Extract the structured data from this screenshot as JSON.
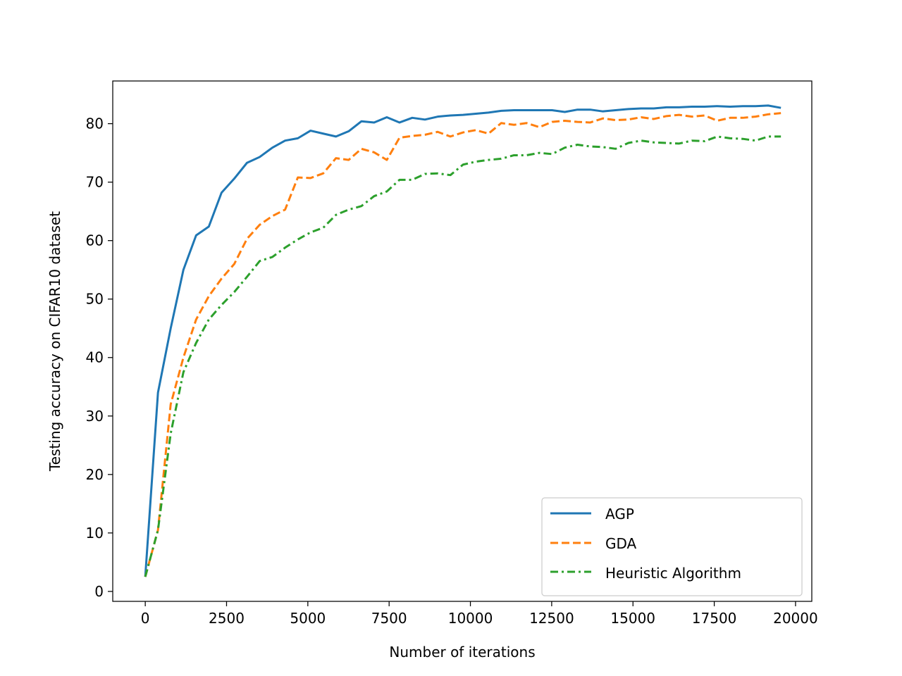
{
  "chart_data": {
    "type": "line",
    "title": "",
    "xlabel": "Number of iterations",
    "ylabel": "Testing accuracy on CIFAR10 dataset",
    "xlim": [
      -1000,
      20500
    ],
    "ylim": [
      -1.7,
      87.3
    ],
    "xticks": [
      0,
      2500,
      5000,
      7500,
      10000,
      12500,
      15000,
      17500,
      20000
    ],
    "xtick_labels": [
      "0",
      "2500",
      "5000",
      "7500",
      "10000",
      "12500",
      "15000",
      "17500",
      "20000"
    ],
    "yticks": [
      0,
      10,
      20,
      30,
      40,
      50,
      60,
      70,
      80
    ],
    "ytick_labels": [
      "0",
      "10",
      "20",
      "30",
      "40",
      "50",
      "60",
      "70",
      "80"
    ],
    "grid": false,
    "legend_position": "lower-right",
    "x": [
      0,
      391,
      782,
      1173,
      1564,
      1955,
      2346,
      2737,
      3128,
      3519,
      3910,
      4301,
      4692,
      5083,
      5474,
      5865,
      6256,
      6647,
      7038,
      7429,
      7820,
      8211,
      8602,
      8993,
      9384,
      9775,
      10166,
      10557,
      10948,
      11339,
      11730,
      12121,
      12512,
      12903,
      13294,
      13685,
      14076,
      14467,
      14858,
      15249,
      15640,
      16031,
      16422,
      16813,
      17204,
      17595,
      17986,
      18377,
      18768,
      19159,
      19550
    ],
    "series": [
      {
        "name": "AGP",
        "color": "#1f77b4",
        "style": "solid",
        "values": [
          2.5,
          34.0,
          45.0,
          55.0,
          60.9,
          62.4,
          68.2,
          70.6,
          73.3,
          74.3,
          75.9,
          77.1,
          77.5,
          78.8,
          78.3,
          77.8,
          78.7,
          80.4,
          80.2,
          81.1,
          80.2,
          81.0,
          80.7,
          81.2,
          81.4,
          81.5,
          81.7,
          81.9,
          82.2,
          82.3,
          82.3,
          82.3,
          82.3,
          82.0,
          82.4,
          82.4,
          82.1,
          82.3,
          82.5,
          82.6,
          82.6,
          82.8,
          82.8,
          82.9,
          82.9,
          83.0,
          82.9,
          83.0,
          83.0,
          83.1,
          82.7
        ]
      },
      {
        "name": "GDA",
        "color": "#ff7f0e",
        "style": "dashed",
        "values": [
          2.5,
          10.5,
          32.0,
          40.0,
          46.5,
          50.5,
          53.5,
          56.0,
          60.3,
          62.7,
          64.2,
          65.3,
          70.8,
          70.7,
          71.5,
          74.1,
          73.8,
          75.7,
          75.1,
          73.8,
          77.6,
          77.9,
          78.1,
          78.6,
          77.8,
          78.5,
          78.9,
          78.3,
          80.1,
          79.8,
          80.1,
          79.4,
          80.3,
          80.5,
          80.3,
          80.2,
          80.9,
          80.6,
          80.7,
          81.1,
          80.8,
          81.3,
          81.5,
          81.2,
          81.4,
          80.5,
          81.0,
          81.0,
          81.2,
          81.6,
          81.8
        ]
      },
      {
        "name": "Heuristic Algorithm",
        "color": "#2ca02c",
        "style": "dashdot",
        "values": [
          2.5,
          10.5,
          27.0,
          37.5,
          42.5,
          46.5,
          49.0,
          51.2,
          53.8,
          56.5,
          57.2,
          58.8,
          60.2,
          61.4,
          62.2,
          64.4,
          65.3,
          65.9,
          67.6,
          68.4,
          70.4,
          70.4,
          71.4,
          71.5,
          71.2,
          73.0,
          73.5,
          73.8,
          74.0,
          74.6,
          74.6,
          75.0,
          74.8,
          75.9,
          76.4,
          76.1,
          76.0,
          75.7,
          76.7,
          77.1,
          76.8,
          76.7,
          76.6,
          77.1,
          77.0,
          77.8,
          77.5,
          77.4,
          77.1,
          77.8,
          77.8
        ]
      }
    ]
  }
}
